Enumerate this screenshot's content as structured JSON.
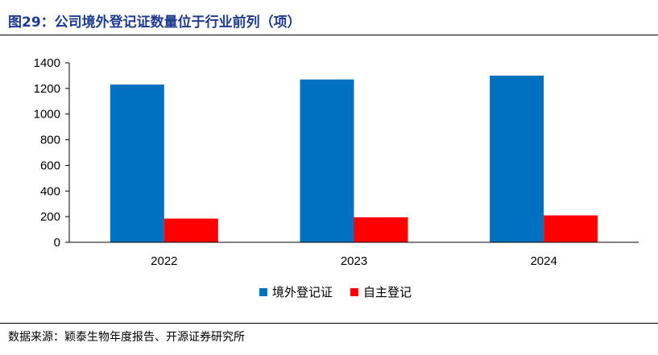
{
  "title": "图29：公司境外登记证数量位于行业前列（项）",
  "source": "数据来源：颖泰生物年度报告、开源证券研究所",
  "chart_data": {
    "type": "bar",
    "title": "",
    "xlabel": "",
    "ylabel": "",
    "categories": [
      "2022",
      "2023",
      "2024"
    ],
    "ylim": [
      0,
      1400
    ],
    "yticks": [
      0,
      200,
      400,
      600,
      800,
      1000,
      1200,
      1400
    ],
    "grid": false,
    "legend_position": "bottom",
    "series": [
      {
        "name": "境外登记证",
        "color": "#0070C0",
        "values": [
          1230,
          1270,
          1300
        ]
      },
      {
        "name": "自主登记",
        "color": "#FF0000",
        "values": [
          185,
          195,
          210
        ]
      }
    ]
  }
}
